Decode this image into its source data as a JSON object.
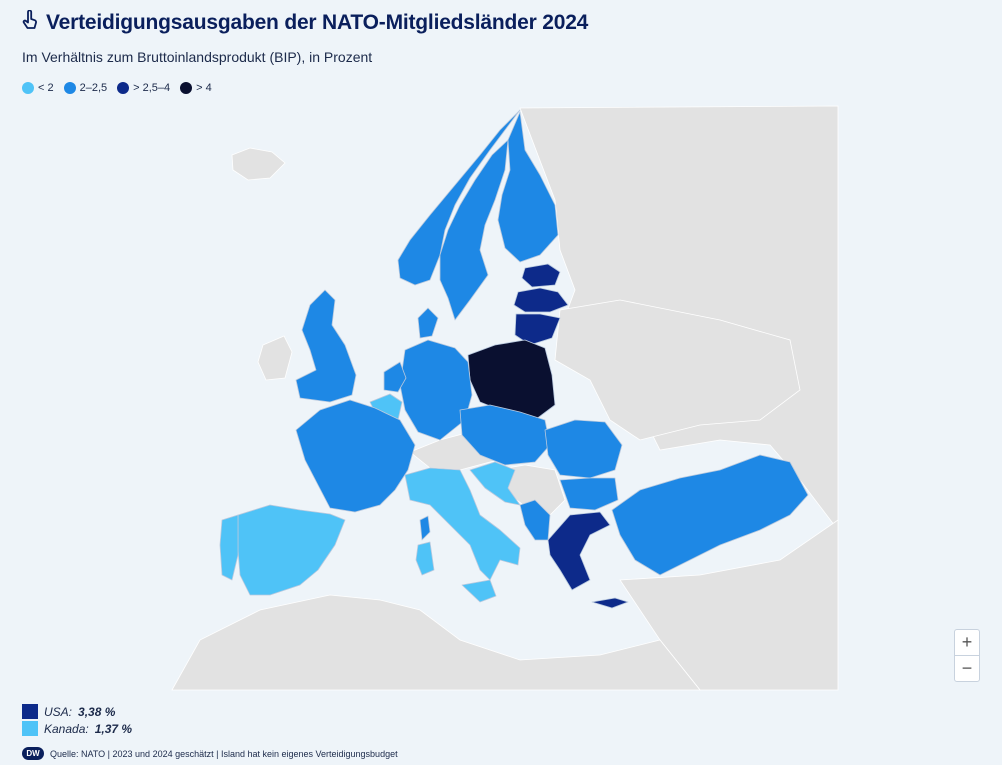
{
  "header": {
    "title": "Verteidigungsausgaben der NATO-Mitgliedsländer 2024",
    "subtitle": "Im Verhältnis zum Bruttoinlandsprodukt (BIP), in Prozent",
    "icon": "pointer-hand-icon"
  },
  "legend": [
    {
      "label": "< 2",
      "color": "#4fc3f7"
    },
    {
      "label": "2–2,5",
      "color": "#1e88e5"
    },
    {
      "label": "> 2,5–4",
      "color": "#0d2a8a"
    },
    {
      "label": "> 4",
      "color": "#0a1030"
    }
  ],
  "colors": {
    "ocean": "#eef4f9",
    "non_member": "#e2e2e2",
    "border": "#b9c9de"
  },
  "notes": [
    {
      "country": "USA:",
      "value": "3,38 %",
      "color": "#0d2a8a"
    },
    {
      "country": "Kanada:",
      "value": "1,37 %",
      "color": "#4fc3f7"
    }
  ],
  "zoom": {
    "in": "+",
    "out": "−"
  },
  "source": {
    "logo": "DW",
    "text": "Quelle: NATO | 2023 und 2024 geschätzt | Island hat kein eigenes Verteidigungsbudget"
  },
  "map_regions": [
    {
      "name": "norway",
      "category": 1
    },
    {
      "name": "sweden",
      "category": 1
    },
    {
      "name": "finland",
      "category": 1
    },
    {
      "name": "estonia",
      "category": 2
    },
    {
      "name": "latvia",
      "category": 2
    },
    {
      "name": "lithuania",
      "category": 2
    },
    {
      "name": "poland",
      "category": 3
    },
    {
      "name": "germany",
      "category": 1
    },
    {
      "name": "denmark",
      "category": 1
    },
    {
      "name": "netherlands",
      "category": 1
    },
    {
      "name": "belgium",
      "category": 0
    },
    {
      "name": "luxembourg",
      "category": 0
    },
    {
      "name": "united-kingdom",
      "category": 1
    },
    {
      "name": "france",
      "category": 1
    },
    {
      "name": "spain",
      "category": 0
    },
    {
      "name": "portugal",
      "category": 0
    },
    {
      "name": "italy",
      "category": 0
    },
    {
      "name": "sardinia",
      "category": 0
    },
    {
      "name": "sicily",
      "category": 0
    },
    {
      "name": "corsica",
      "category": 1
    },
    {
      "name": "slovenia",
      "category": 0
    },
    {
      "name": "croatia",
      "category": 0
    },
    {
      "name": "czechia",
      "category": 1
    },
    {
      "name": "slovakia",
      "category": 1
    },
    {
      "name": "hungary",
      "category": 1
    },
    {
      "name": "romania",
      "category": 1
    },
    {
      "name": "bulgaria",
      "category": 1
    },
    {
      "name": "north-macedonia",
      "category": 1
    },
    {
      "name": "albania",
      "category": 1
    },
    {
      "name": "montenegro",
      "category": 1
    },
    {
      "name": "greece",
      "category": 2
    },
    {
      "name": "crete",
      "category": 2
    },
    {
      "name": "turkey",
      "category": 1
    }
  ]
}
